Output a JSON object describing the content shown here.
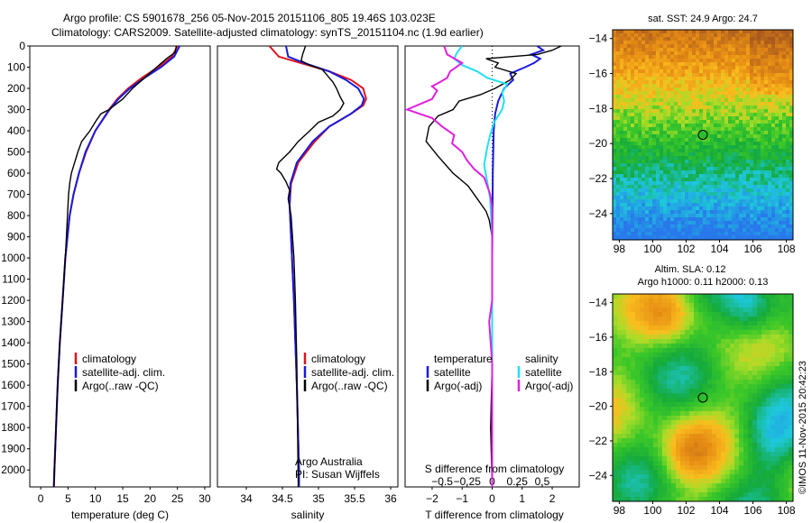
{
  "title": {
    "line1": "Argo profile: CS 5901678_256 05-Nov-2015 20151106_805 19.46S 103.023E",
    "line2": "Climatology: CARS2009. Satellite-adjusted climatology: synTS_20151104.nc (1.9d earlier)"
  },
  "colors": {
    "red": "#e0141c",
    "blue": "#1a1adc",
    "black": "#000000",
    "cyan": "#22e0ee",
    "magenta": "#e020e0"
  },
  "chart_data": [
    {
      "type": "line",
      "id": "temperature",
      "xlabel": "temperature (deg C)",
      "ylim": [
        2080,
        0
      ],
      "xlim": [
        -2,
        31
      ],
      "xticks": [
        0,
        5,
        10,
        15,
        20,
        25,
        30
      ],
      "yticks": [
        0,
        100,
        200,
        300,
        400,
        500,
        600,
        700,
        800,
        900,
        1000,
        1100,
        1200,
        1300,
        1400,
        1500,
        1600,
        1700,
        1800,
        1900,
        2000
      ],
      "legend": [
        "climatology",
        "satellite-adj. clim.",
        "Argo(..raw -QC)"
      ],
      "series": [
        {
          "name": "climatology",
          "color": "red",
          "depth": [
            0,
            50,
            100,
            150,
            200,
            250,
            300,
            400,
            500,
            600,
            700,
            800,
            1000,
            1200,
            1400,
            1600,
            1800,
            2000,
            2080
          ],
          "value": [
            25.0,
            24.0,
            21.5,
            18.5,
            16.0,
            14.0,
            12.5,
            10.0,
            8.3,
            7.0,
            6.0,
            5.3,
            4.5,
            4.0,
            3.5,
            3.1,
            2.8,
            2.5,
            2.4
          ]
        },
        {
          "name": "satellite-adj. clim.",
          "color": "blue",
          "depth": [
            0,
            50,
            100,
            150,
            200,
            250,
            300,
            400,
            500,
            600,
            700,
            800,
            1000,
            1200,
            1400,
            1600,
            1800,
            2000,
            2080
          ],
          "value": [
            25.4,
            24.4,
            22.0,
            19.0,
            16.3,
            14.2,
            12.6,
            10.0,
            8.2,
            7.0,
            6.0,
            5.3,
            4.5,
            4.0,
            3.5,
            3.1,
            2.8,
            2.5,
            2.4
          ]
        },
        {
          "name": "Argo(..raw -QC)",
          "color": "black",
          "depth": [
            0,
            30,
            60,
            100,
            150,
            200,
            250,
            300,
            320,
            350,
            400,
            450,
            500,
            600,
            650,
            700,
            800,
            1000,
            1200,
            1400,
            1600,
            1800,
            2000,
            2080
          ],
          "value": [
            24.8,
            24.6,
            23.0,
            21.2,
            19.0,
            16.8,
            15.0,
            12.5,
            11.0,
            10.2,
            9.0,
            7.5,
            6.8,
            5.6,
            5.3,
            5.1,
            4.9,
            4.5,
            4.0,
            3.5,
            3.1,
            2.8,
            2.5,
            2.4
          ]
        }
      ]
    },
    {
      "type": "line",
      "id": "salinity",
      "xlabel": "salinity",
      "ylim": [
        2080,
        0
      ],
      "xlim": [
        33.6,
        36.1
      ],
      "xticks": [
        34,
        34.5,
        35,
        35.5,
        36
      ],
      "legend": [
        "climatology",
        "satellite-adj. clim.",
        "Argo(..raw -QC)"
      ],
      "annotation": [
        "Argo Australia",
        "PI: Susan Wijffels"
      ],
      "series": [
        {
          "name": "climatology",
          "color": "red",
          "depth": [
            0,
            50,
            80,
            120,
            160,
            200,
            250,
            280,
            320,
            380,
            450,
            550,
            650,
            750,
            900,
            1200,
            1600,
            2000,
            2080
          ],
          "value": [
            34.32,
            34.45,
            34.75,
            35.15,
            35.45,
            35.62,
            35.66,
            35.62,
            35.45,
            35.15,
            34.95,
            34.72,
            34.62,
            34.6,
            34.62,
            34.66,
            34.7,
            34.73,
            34.73
          ]
        },
        {
          "name": "satellite-adj. clim.",
          "color": "blue",
          "depth": [
            0,
            50,
            80,
            120,
            160,
            200,
            250,
            280,
            320,
            380,
            450,
            550,
            650,
            750,
            900,
            1200,
            1600,
            2000,
            2080
          ],
          "value": [
            34.55,
            34.58,
            34.8,
            35.15,
            35.38,
            35.55,
            35.63,
            35.6,
            35.45,
            35.15,
            34.92,
            34.7,
            34.61,
            34.6,
            34.62,
            34.66,
            34.7,
            34.73,
            34.73
          ]
        },
        {
          "name": "Argo(..raw -QC)",
          "color": "black",
          "depth": [
            0,
            40,
            70,
            90,
            110,
            130,
            150,
            170,
            200,
            240,
            270,
            300,
            330,
            360,
            400,
            450,
            500,
            550,
            580,
            600,
            640,
            680,
            720,
            800,
            1000,
            1200,
            1500,
            2080
          ],
          "value": [
            34.82,
            34.78,
            34.76,
            34.88,
            35.05,
            35.1,
            35.15,
            35.2,
            35.25,
            35.3,
            35.35,
            35.3,
            35.2,
            35.0,
            34.88,
            34.72,
            34.6,
            34.45,
            34.42,
            34.48,
            34.55,
            34.6,
            34.58,
            34.62,
            34.66,
            34.68,
            34.7,
            34.72
          ]
        }
      ]
    },
    {
      "type": "line",
      "id": "difference",
      "xlabel_bottom": "T difference from climatology",
      "xlabel_top": "S difference from climatology",
      "ylim": [
        2080,
        0
      ],
      "t_xlim": [
        -2.9,
        2.9
      ],
      "t_xticks": [
        -2,
        -1,
        0,
        1,
        2
      ],
      "s_xticks": [
        -0.5,
        -0.25,
        0,
        0.25,
        0.5
      ],
      "legend_temperature": [
        "temperature",
        "satellite",
        "Argo(-adj)"
      ],
      "legend_salinity": [
        "salinity",
        "satellite",
        "Argo(-adj)"
      ],
      "series": [
        {
          "name": "temperature satellite",
          "color": "blue",
          "depth": [
            0,
            20,
            40,
            60,
            80,
            100,
            130,
            160,
            200,
            260,
            320,
            400,
            600,
            1000,
            1500,
            2080
          ],
          "value": [
            1.5,
            1.7,
            1.3,
            1.6,
            1.4,
            1.1,
            0.6,
            0.7,
            0.4,
            0.2,
            0.1,
            0.05,
            0.02,
            0.0,
            0.0,
            0.0
          ]
        },
        {
          "name": "temperature Argo(-adj)",
          "color": "black",
          "depth": [
            0,
            20,
            40,
            60,
            80,
            100,
            130,
            160,
            200,
            230,
            260,
            300,
            330,
            380,
            450,
            520,
            600,
            660,
            720,
            780,
            820,
            900,
            1000,
            1200,
            1500,
            1800,
            2080
          ],
          "value": [
            2.3,
            2.0,
            1.5,
            -0.2,
            0.2,
            0.1,
            0.8,
            0.6,
            0.1,
            -0.4,
            -1.1,
            -1.3,
            -1.8,
            -2.1,
            -2.2,
            -1.8,
            -1.3,
            -0.8,
            -0.5,
            -0.2,
            -0.1,
            0.0,
            0.0,
            0.0,
            0.0,
            -0.05,
            0.0
          ]
        },
        {
          "name": "salinity satellite",
          "color": "cyan",
          "depth": [
            0,
            30,
            60,
            90,
            120,
            150,
            180,
            220,
            260,
            300,
            360,
            420,
            480,
            560,
            640,
            720,
            900,
            1500,
            2080
          ],
          "value": [
            -0.3,
            -0.35,
            -0.38,
            -0.3,
            -0.15,
            -0.05,
            0.15,
            0.1,
            0.12,
            0.1,
            0.02,
            -0.02,
            -0.05,
            -0.08,
            -0.05,
            -0.02,
            0.0,
            0.0,
            0.0
          ]
        },
        {
          "name": "salinity Argo(-adj)",
          "color": "magenta",
          "depth": [
            0,
            40,
            80,
            120,
            150,
            170,
            190,
            210,
            250,
            280,
            300,
            340,
            380,
            420,
            460,
            500,
            540,
            580,
            620,
            660,
            700,
            760,
            1000,
            1200,
            1300,
            1500,
            1800,
            2080
          ],
          "value": [
            -0.48,
            -0.45,
            -0.3,
            -0.42,
            -0.45,
            -0.52,
            -0.6,
            -0.55,
            -0.6,
            -0.75,
            -0.85,
            -0.6,
            -0.5,
            -0.38,
            -0.4,
            -0.3,
            -0.25,
            -0.18,
            -0.08,
            -0.05,
            -0.02,
            0.0,
            0.0,
            0.0,
            -0.03,
            0.0,
            0.0,
            0.0
          ]
        }
      ]
    },
    {
      "type": "heatmap",
      "id": "sst_map",
      "title": "sat. SST: 24.9 Argo: 24.7",
      "xlim": [
        97.6,
        108.4
      ],
      "ylim": [
        -25.5,
        -13.5
      ],
      "xticks": [
        98,
        100,
        102,
        104,
        106,
        108
      ],
      "yticks": [
        -14,
        -16,
        -18,
        -20,
        -22,
        -24
      ],
      "marker": {
        "lon": 103.0,
        "lat": -19.5
      }
    },
    {
      "type": "heatmap",
      "id": "sla_map",
      "title1": "Altim. SLA: 0.12",
      "title2": "Argo h1000: 0.11 h2000: 0.13",
      "xlim": [
        97.6,
        108.4
      ],
      "ylim": [
        -25.5,
        -13.5
      ],
      "xticks": [
        98,
        100,
        102,
        104,
        106,
        108
      ],
      "yticks": [
        -14,
        -16,
        -18,
        -20,
        -22,
        -24
      ],
      "marker": {
        "lon": 103.0,
        "lat": -19.5
      }
    }
  ],
  "credit": "©IMOS 11-Nov-2015 20:42:23"
}
